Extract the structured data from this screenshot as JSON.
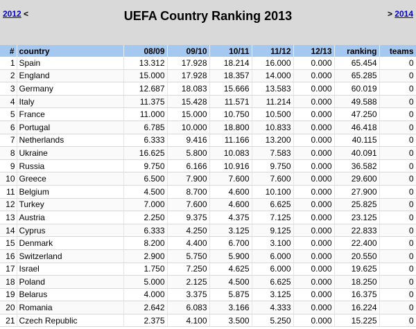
{
  "header": {
    "prev_year": "2012",
    "prev_arrow": "<",
    "title": "UEFA Country Ranking 2013",
    "next_arrow": ">",
    "next_year": "2014"
  },
  "columns": {
    "rank": "#",
    "country": "country",
    "s0809": "08/09",
    "s0910": "09/10",
    "s1011": "10/11",
    "s1112": "11/12",
    "s1213": "12/13",
    "ranking": "ranking",
    "teams": "teams"
  },
  "rows": [
    {
      "rank": "1",
      "country": "Spain",
      "s0809": "13.312",
      "s0910": "17.928",
      "s1011": "18.214",
      "s1112": "16.000",
      "s1213": "0.000",
      "ranking": "65.454",
      "teams": "0"
    },
    {
      "rank": "2",
      "country": "England",
      "s0809": "15.000",
      "s0910": "17.928",
      "s1011": "18.357",
      "s1112": "14.000",
      "s1213": "0.000",
      "ranking": "65.285",
      "teams": "0"
    },
    {
      "rank": "3",
      "country": "Germany",
      "s0809": "12.687",
      "s0910": "18.083",
      "s1011": "15.666",
      "s1112": "13.583",
      "s1213": "0.000",
      "ranking": "60.019",
      "teams": "0"
    },
    {
      "rank": "4",
      "country": "Italy",
      "s0809": "11.375",
      "s0910": "15.428",
      "s1011": "11.571",
      "s1112": "11.214",
      "s1213": "0.000",
      "ranking": "49.588",
      "teams": "0"
    },
    {
      "rank": "5",
      "country": "France",
      "s0809": "11.000",
      "s0910": "15.000",
      "s1011": "10.750",
      "s1112": "10.500",
      "s1213": "0.000",
      "ranking": "47.250",
      "teams": "0"
    },
    {
      "rank": "6",
      "country": "Portugal",
      "s0809": "6.785",
      "s0910": "10.000",
      "s1011": "18.800",
      "s1112": "10.833",
      "s1213": "0.000",
      "ranking": "46.418",
      "teams": "0"
    },
    {
      "rank": "7",
      "country": "Netherlands",
      "s0809": "6.333",
      "s0910": "9.416",
      "s1011": "11.166",
      "s1112": "13.200",
      "s1213": "0.000",
      "ranking": "40.115",
      "teams": "0"
    },
    {
      "rank": "8",
      "country": "Ukraine",
      "s0809": "16.625",
      "s0910": "5.800",
      "s1011": "10.083",
      "s1112": "7.583",
      "s1213": "0.000",
      "ranking": "40.091",
      "teams": "0"
    },
    {
      "rank": "9",
      "country": "Russia",
      "s0809": "9.750",
      "s0910": "6.166",
      "s1011": "10.916",
      "s1112": "9.750",
      "s1213": "0.000",
      "ranking": "36.582",
      "teams": "0"
    },
    {
      "rank": "10",
      "country": "Greece",
      "s0809": "6.500",
      "s0910": "7.900",
      "s1011": "7.600",
      "s1112": "7.600",
      "s1213": "0.000",
      "ranking": "29.600",
      "teams": "0"
    },
    {
      "rank": "11",
      "country": "Belgium",
      "s0809": "4.500",
      "s0910": "8.700",
      "s1011": "4.600",
      "s1112": "10.100",
      "s1213": "0.000",
      "ranking": "27.900",
      "teams": "0"
    },
    {
      "rank": "12",
      "country": "Turkey",
      "s0809": "7.000",
      "s0910": "7.600",
      "s1011": "4.600",
      "s1112": "6.625",
      "s1213": "0.000",
      "ranking": "25.825",
      "teams": "0"
    },
    {
      "rank": "13",
      "country": "Austria",
      "s0809": "2.250",
      "s0910": "9.375",
      "s1011": "4.375",
      "s1112": "7.125",
      "s1213": "0.000",
      "ranking": "23.125",
      "teams": "0"
    },
    {
      "rank": "14",
      "country": "Cyprus",
      "s0809": "6.333",
      "s0910": "4.250",
      "s1011": "3.125",
      "s1112": "9.125",
      "s1213": "0.000",
      "ranking": "22.833",
      "teams": "0"
    },
    {
      "rank": "15",
      "country": "Denmark",
      "s0809": "8.200",
      "s0910": "4.400",
      "s1011": "6.700",
      "s1112": "3.100",
      "s1213": "0.000",
      "ranking": "22.400",
      "teams": "0"
    },
    {
      "rank": "16",
      "country": "Switzerland",
      "s0809": "2.900",
      "s0910": "5.750",
      "s1011": "5.900",
      "s1112": "6.000",
      "s1213": "0.000",
      "ranking": "20.550",
      "teams": "0"
    },
    {
      "rank": "17",
      "country": "Israel",
      "s0809": "1.750",
      "s0910": "7.250",
      "s1011": "4.625",
      "s1112": "6.000",
      "s1213": "0.000",
      "ranking": "19.625",
      "teams": "0"
    },
    {
      "rank": "18",
      "country": "Poland",
      "s0809": "5.000",
      "s0910": "2.125",
      "s1011": "4.500",
      "s1112": "6.625",
      "s1213": "0.000",
      "ranking": "18.250",
      "teams": "0"
    },
    {
      "rank": "19",
      "country": "Belarus",
      "s0809": "4.000",
      "s0910": "3.375",
      "s1011": "5.875",
      "s1112": "3.125",
      "s1213": "0.000",
      "ranking": "16.375",
      "teams": "0"
    },
    {
      "rank": "20",
      "country": "Romania",
      "s0809": "2.642",
      "s0910": "6.083",
      "s1011": "3.166",
      "s1112": "4.333",
      "s1213": "0.000",
      "ranking": "16.224",
      "teams": "0"
    },
    {
      "rank": "21",
      "country": "Czech Republic",
      "s0809": "2.375",
      "s0910": "4.100",
      "s1011": "3.500",
      "s1112": "5.250",
      "s1213": "0.000",
      "ranking": "15.225",
      "teams": "0"
    }
  ]
}
